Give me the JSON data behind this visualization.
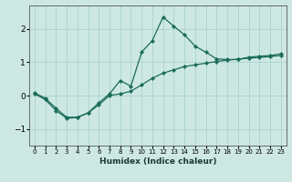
{
  "xlabel": "Humidex (Indice chaleur)",
  "background_color": "#cde8e3",
  "grid_color": "#aad4cc",
  "line_color": "#1a6b5a",
  "xlim": [
    -0.5,
    23.5
  ],
  "ylim": [
    -1.5,
    2.7
  ],
  "xticks": [
    0,
    1,
    2,
    3,
    4,
    5,
    6,
    7,
    8,
    9,
    10,
    11,
    12,
    13,
    14,
    15,
    16,
    17,
    18,
    19,
    20,
    21,
    22,
    23
  ],
  "yticks": [
    -1,
    0,
    1,
    2
  ],
  "curve1_x": [
    0,
    1,
    2,
    3,
    4,
    5,
    6,
    7,
    8,
    9,
    10,
    11,
    12,
    13,
    14,
    15,
    16,
    17,
    18,
    19,
    20,
    21,
    22,
    23
  ],
  "curve1_y": [
    0.08,
    -0.08,
    -0.38,
    -0.65,
    -0.65,
    -0.52,
    -0.22,
    0.05,
    0.45,
    0.28,
    1.3,
    1.65,
    2.35,
    2.08,
    1.82,
    1.48,
    1.3,
    1.1,
    1.08,
    1.08,
    1.15,
    1.18,
    1.2,
    1.25
  ],
  "curve2_x": [
    0,
    1,
    2,
    3,
    4,
    5,
    6,
    7,
    8,
    9,
    10,
    11,
    12,
    13,
    14,
    15,
    16,
    17,
    18,
    19,
    20,
    21,
    22,
    23
  ],
  "curve2_y": [
    0.05,
    -0.12,
    -0.45,
    -0.68,
    -0.66,
    -0.52,
    -0.28,
    0.0,
    0.05,
    0.13,
    0.32,
    0.52,
    0.67,
    0.77,
    0.87,
    0.92,
    0.97,
    1.02,
    1.06,
    1.09,
    1.12,
    1.14,
    1.17,
    1.2
  ]
}
